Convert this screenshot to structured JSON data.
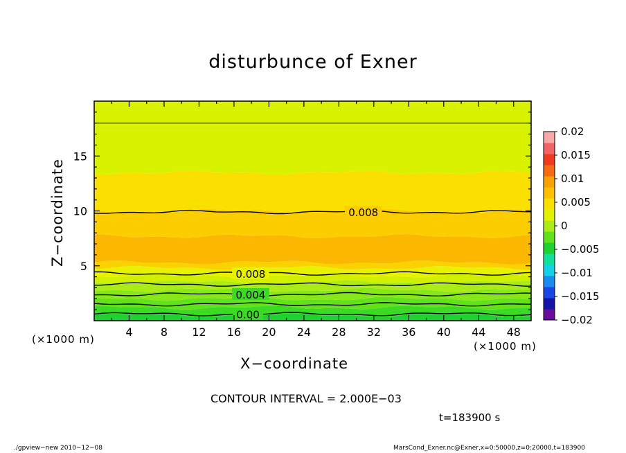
{
  "chart_data": {
    "type": "heatmap",
    "title": "disturbunce of Exner",
    "xlabel": "X−coordinate",
    "ylabel": "Z−coordinate",
    "x_unit": "(×1000 m)",
    "y_unit": "(×1000 m)",
    "xlim": [
      0,
      50
    ],
    "ylim": [
      0,
      20
    ],
    "x_ticks": [
      "4",
      "8",
      "12",
      "16",
      "20",
      "24",
      "28",
      "32",
      "36",
      "40",
      "44",
      "48"
    ],
    "y_ticks": [
      "5",
      "10",
      "15"
    ],
    "colorbar": {
      "range": [
        -0.02,
        0.02
      ],
      "tick_labels": [
        "0.02",
        "0.015",
        "0.01",
        "0.005",
        "0",
        "−0.005",
        "−0.01",
        "−0.015",
        "−0.02"
      ],
      "colors": [
        "#6a0c9a",
        "#1414a8",
        "#1a46e6",
        "#1a8cf0",
        "#14d2e6",
        "#12e09a",
        "#1ed232",
        "#62e21a",
        "#aaec18",
        "#e0f200",
        "#fae000",
        "#fcc000",
        "#faa000",
        "#f56a14",
        "#f03a1e",
        "#f26464",
        "#f9a8a8"
      ]
    },
    "contour_labels": [
      {
        "text": "0.008",
        "x": 30.8,
        "z": 9.9
      },
      {
        "text": "0.008",
        "x": 17.9,
        "z": 4.3
      },
      {
        "text": "0.004",
        "x": 17.9,
        "z": 2.4
      },
      {
        "text": "0.00",
        "x": 17.6,
        "z": 0.6
      }
    ],
    "contour_interval_text": "CONTOUR INTERVAL = 2.000E−03",
    "time_text": "t=183900  s"
  },
  "footer": {
    "left": "./gpview−new   2010−12−08",
    "right": "MarsCond_Exner.nc@Exner,x=0:50000,z=0:20000,t=183900"
  }
}
